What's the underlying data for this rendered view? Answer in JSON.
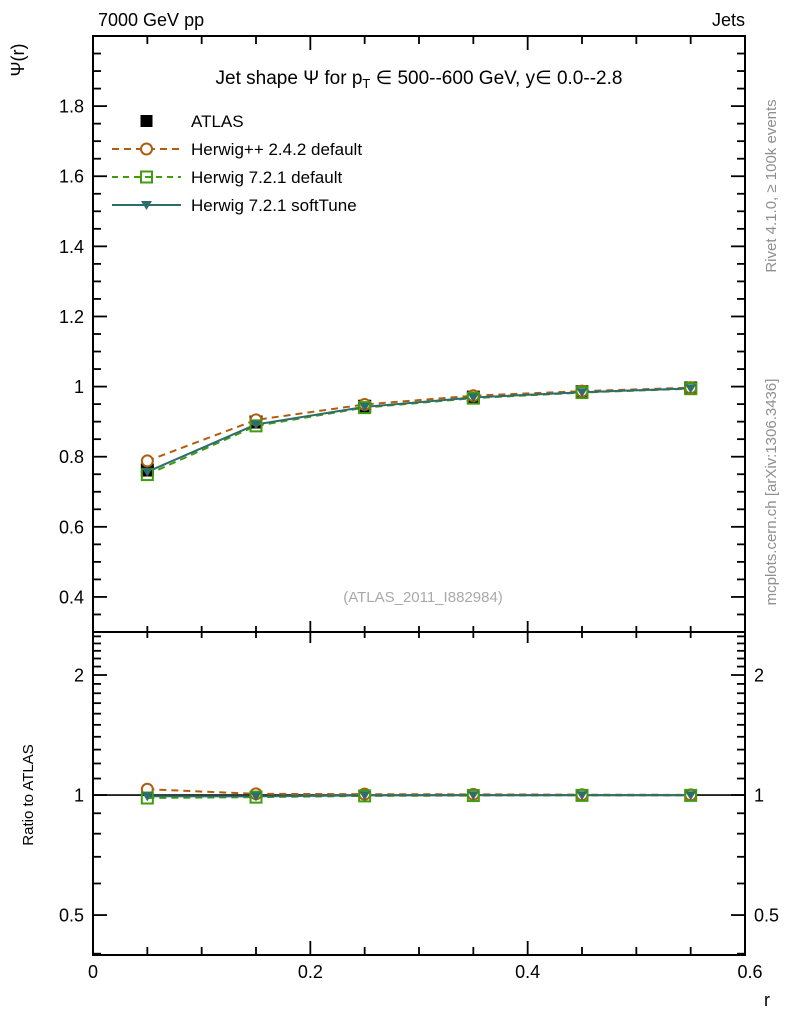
{
  "header": {
    "left": "7000 GeV pp",
    "right": "Jets"
  },
  "side_notes": {
    "top_right": "Rivet 4.1.0, ≥ 100k events",
    "bottom_right": "mcplots.cern.ch [arXiv:1306.3436]",
    "color": "#8f8f8f"
  },
  "watermark": {
    "text": "(ATLAS_2011_I882984)",
    "color": "#a9a9a9"
  },
  "main_plot": {
    "title_parts": {
      "pre": "Jet shape Ψ for p",
      "sub": "T",
      "post": " ∈ 500--600 GeV, y∈ 0.0--2.8"
    },
    "ylabel": "Ψ(r)"
  },
  "ratio_plot": {
    "ylabel": "Ratio to ATLAS",
    "right_labels": [
      "2",
      "1",
      "0.5"
    ]
  },
  "xaxis": {
    "label": "r"
  },
  "legend": {
    "items": [
      {
        "label": "ATLAS"
      },
      {
        "label": "Herwig++ 2.4.2 default"
      },
      {
        "label": "Herwig 7.2.1 default"
      },
      {
        "label": "Herwig 7.2.1 softTune"
      }
    ]
  },
  "chart_data": [
    {
      "type": "line",
      "panel": "main",
      "title": "Jet shape Ψ for p_T ∈ 500--600 GeV, y∈ 0.0--2.8",
      "xlabel": "r",
      "ylabel": "Ψ(r)",
      "xlim": [
        0,
        0.6
      ],
      "ylim": [
        0.3,
        2.0
      ],
      "grid": false,
      "legend_position": "top-left",
      "x": [
        0.05,
        0.15,
        0.25,
        0.35,
        0.45,
        0.55
      ],
      "series": [
        {
          "name": "ATLAS",
          "color": "#000000",
          "marker": "filled-square",
          "line": "none",
          "values": [
            0.762,
            0.899,
            0.944,
            0.97,
            0.985,
            0.996
          ]
        },
        {
          "name": "Herwig++ 2.4.2 default",
          "color": "#b05d10",
          "marker": "open-circle",
          "line": "dashed",
          "values": [
            0.788,
            0.905,
            0.949,
            0.974,
            0.987,
            0.997
          ]
        },
        {
          "name": "Herwig 7.2.1 default",
          "color": "#409c0c",
          "marker": "open-square",
          "line": "dashed",
          "values": [
            0.749,
            0.888,
            0.94,
            0.967,
            0.983,
            0.994
          ]
        },
        {
          "name": "Herwig 7.2.1 softTune",
          "color": "#2e6d6e",
          "marker": "filled-triangle-down",
          "line": "solid",
          "values": [
            0.757,
            0.892,
            0.942,
            0.969,
            0.984,
            0.995
          ]
        }
      ],
      "xticks": {
        "values": [
          0,
          0.2,
          0.4,
          0.6
        ],
        "labels": [
          "0",
          "0.2",
          "0.4",
          "0.6"
        ],
        "minor_step": 0.05
      },
      "yticks": {
        "values": [
          0.4,
          0.6,
          0.8,
          1.0,
          1.2,
          1.4,
          1.6,
          1.8
        ],
        "labels": [
          "0.4",
          "0.6",
          "0.8",
          "1",
          "1.2",
          "1.4",
          "1.6",
          "1.8"
        ],
        "minor_step": 0.05
      }
    },
    {
      "type": "line",
      "panel": "ratio",
      "ylabel": "Ratio to ATLAS",
      "yscale": "log",
      "ylim": [
        0.397,
        2.564
      ],
      "refline": 1,
      "x": [
        0.05,
        0.15,
        0.25,
        0.35,
        0.45,
        0.55
      ],
      "series": [
        {
          "name": "Herwig++ 2.4.2 default",
          "color": "#b05d10",
          "marker": "open-circle",
          "line": "dashed",
          "values": [
            1.034,
            1.007,
            1.005,
            1.004,
            1.002,
            1.001
          ]
        },
        {
          "name": "Herwig 7.2.1 default",
          "color": "#409c0c",
          "marker": "open-square",
          "line": "dashed",
          "values": [
            0.983,
            0.988,
            0.995,
            0.997,
            0.998,
            0.998
          ]
        },
        {
          "name": "Herwig 7.2.1 softTune",
          "color": "#2e6d6e",
          "marker": "filled-triangle-down",
          "line": "solid",
          "values": [
            0.993,
            0.992,
            0.998,
            0.999,
            0.999,
            0.999
          ]
        }
      ],
      "yticks": {
        "values": [
          0.5,
          1,
          2
        ],
        "labels": [
          "0.5",
          "1",
          "2"
        ],
        "minor": [
          0.4,
          0.6,
          0.7,
          0.8,
          0.9,
          1.1,
          1.2,
          1.3,
          1.4,
          1.5,
          1.6,
          1.7,
          1.8,
          1.9,
          2.1,
          2.2,
          2.3,
          2.4,
          2.5
        ]
      }
    }
  ]
}
